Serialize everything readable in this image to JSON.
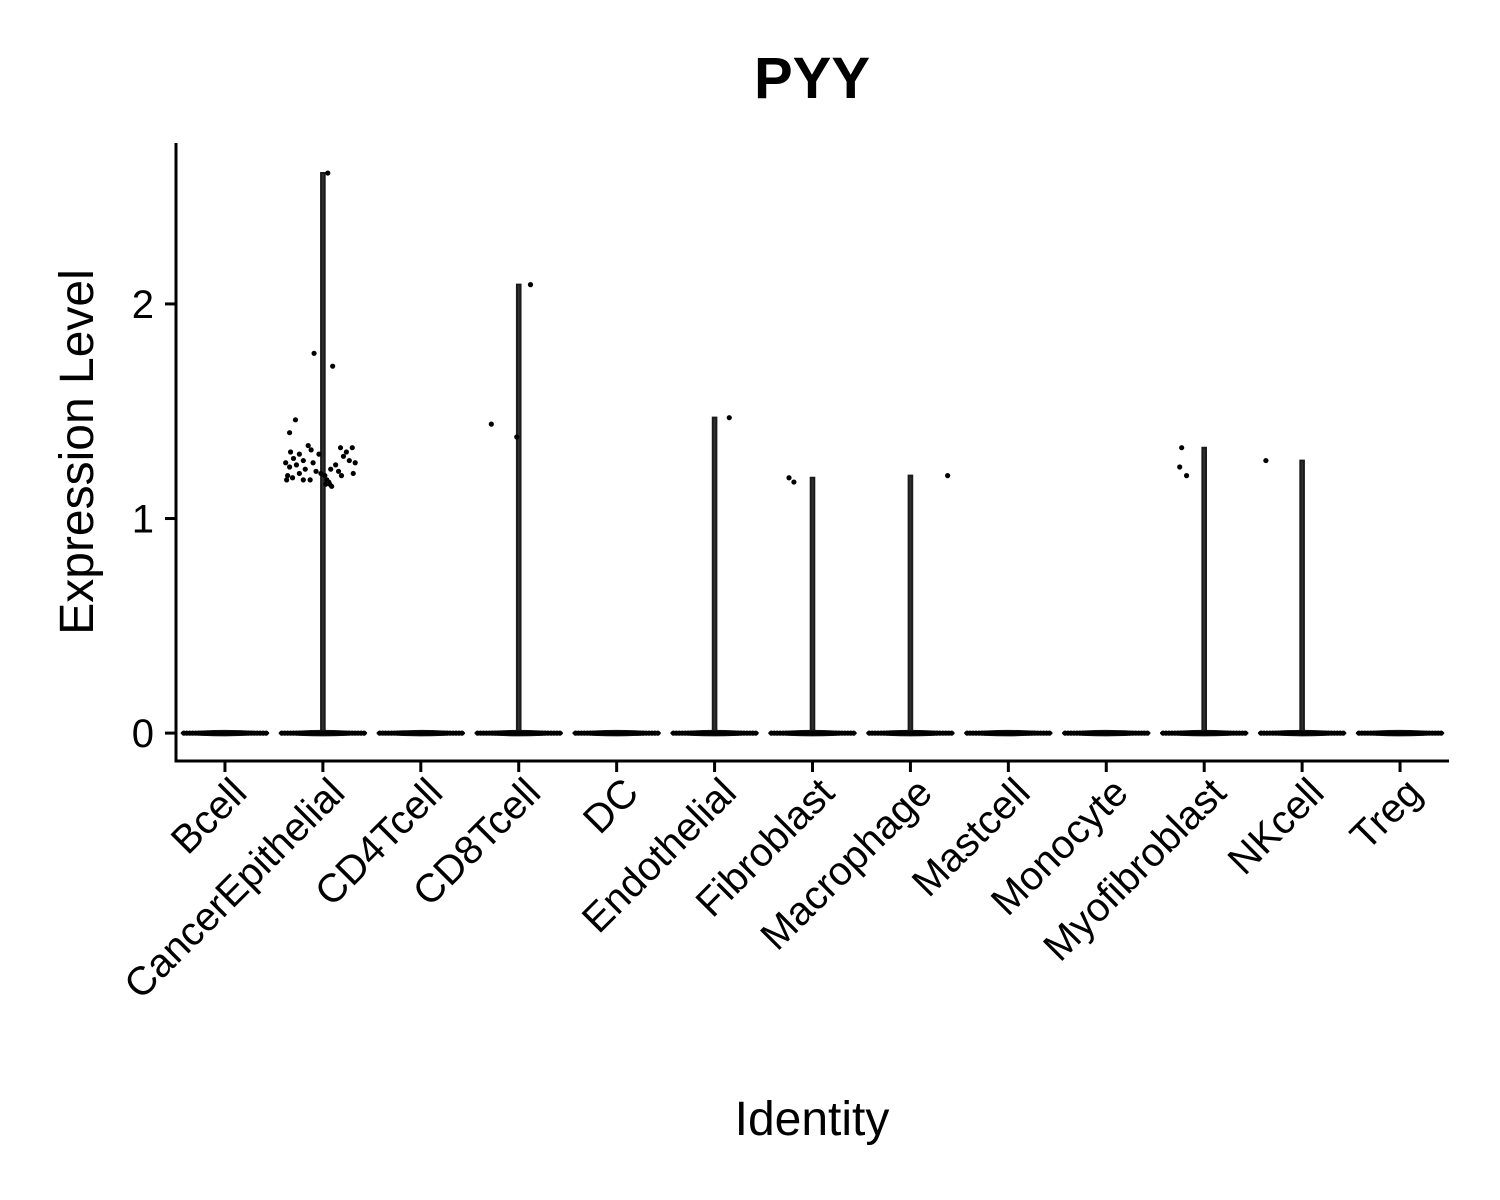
{
  "chart_data": {
    "type": "violin",
    "title": "PYY",
    "xlabel": "Identity",
    "ylabel": "Expression Level",
    "ylim": [
      -0.13,
      2.75
    ],
    "yticks": [
      0,
      1,
      2
    ],
    "legend": "none",
    "grid": false,
    "categories": [
      "Bcell",
      "CancerEpithelial",
      "CD4Tcell",
      "CD8Tcell",
      "DC",
      "Endothelial",
      "Fibroblast",
      "Macrophage",
      "Mastcell",
      "Monocyte",
      "Myofibroblast",
      "NKcell",
      "Treg"
    ],
    "violin_max": [
      0,
      2.61,
      0,
      2.09,
      0,
      1.47,
      1.19,
      1.2,
      0,
      0,
      1.33,
      1.27,
      0
    ],
    "points": [
      {
        "category": "CancerEpithelial",
        "jitter": 0.05,
        "y": 2.61
      },
      {
        "category": "CancerEpithelial",
        "jitter": -0.09,
        "y": 1.77
      },
      {
        "category": "CancerEpithelial",
        "jitter": 0.1,
        "y": 1.71
      },
      {
        "category": "CancerEpithelial",
        "jitter": -0.28,
        "y": 1.46
      },
      {
        "category": "CancerEpithelial",
        "jitter": -0.34,
        "y": 1.4
      },
      {
        "category": "CancerEpithelial",
        "jitter": -0.15,
        "y": 1.34
      },
      {
        "category": "CancerEpithelial",
        "jitter": -0.12,
        "y": 1.32
      },
      {
        "category": "CancerEpithelial",
        "jitter": 0.18,
        "y": 1.33
      },
      {
        "category": "CancerEpithelial",
        "jitter": 0.3,
        "y": 1.33
      },
      {
        "category": "CancerEpithelial",
        "jitter": 0.24,
        "y": 1.31
      },
      {
        "category": "CancerEpithelial",
        "jitter": -0.33,
        "y": 1.31
      },
      {
        "category": "CancerEpithelial",
        "jitter": -0.24,
        "y": 1.3
      },
      {
        "category": "CancerEpithelial",
        "jitter": -0.04,
        "y": 1.3
      },
      {
        "category": "CancerEpithelial",
        "jitter": 0.21,
        "y": 1.29
      },
      {
        "category": "CancerEpithelial",
        "jitter": -0.3,
        "y": 1.28
      },
      {
        "category": "CancerEpithelial",
        "jitter": -0.2,
        "y": 1.27
      },
      {
        "category": "CancerEpithelial",
        "jitter": 0.27,
        "y": 1.27
      },
      {
        "category": "CancerEpithelial",
        "jitter": -0.38,
        "y": 1.26
      },
      {
        "category": "CancerEpithelial",
        "jitter": -0.1,
        "y": 1.26
      },
      {
        "category": "CancerEpithelial",
        "jitter": 0.33,
        "y": 1.26
      },
      {
        "category": "CancerEpithelial",
        "jitter": -0.27,
        "y": 1.25
      },
      {
        "category": "CancerEpithelial",
        "jitter": 0.13,
        "y": 1.25
      },
      {
        "category": "CancerEpithelial",
        "jitter": -0.34,
        "y": 1.24
      },
      {
        "category": "CancerEpithelial",
        "jitter": -0.18,
        "y": 1.23
      },
      {
        "category": "CancerEpithelial",
        "jitter": 0.08,
        "y": 1.23
      },
      {
        "category": "CancerEpithelial",
        "jitter": -0.07,
        "y": 1.22
      },
      {
        "category": "CancerEpithelial",
        "jitter": 0.16,
        "y": 1.22
      },
      {
        "category": "CancerEpithelial",
        "jitter": -0.24,
        "y": 1.21
      },
      {
        "category": "CancerEpithelial",
        "jitter": -0.02,
        "y": 1.21
      },
      {
        "category": "CancerEpithelial",
        "jitter": 0.31,
        "y": 1.21
      },
      {
        "category": "CancerEpithelial",
        "jitter": -0.36,
        "y": 1.2
      },
      {
        "category": "CancerEpithelial",
        "jitter": 0.02,
        "y": 1.2
      },
      {
        "category": "CancerEpithelial",
        "jitter": 0.19,
        "y": 1.2
      },
      {
        "category": "CancerEpithelial",
        "jitter": -0.31,
        "y": 1.19
      },
      {
        "category": "CancerEpithelial",
        "jitter": -0.13,
        "y": 1.18
      },
      {
        "category": "CancerEpithelial",
        "jitter": 0.04,
        "y": 1.18
      },
      {
        "category": "CancerEpithelial",
        "jitter": -0.37,
        "y": 1.18
      },
      {
        "category": "CancerEpithelial",
        "jitter": -0.2,
        "y": 1.18
      },
      {
        "category": "CancerEpithelial",
        "jitter": 0.06,
        "y": 1.17
      },
      {
        "category": "CancerEpithelial",
        "jitter": 0.07,
        "y": 1.16
      },
      {
        "category": "CancerEpithelial",
        "jitter": 0.03,
        "y": 1.16
      },
      {
        "category": "CancerEpithelial",
        "jitter": 0.09,
        "y": 1.15
      },
      {
        "category": "CD8Tcell",
        "jitter": 0.12,
        "y": 2.09
      },
      {
        "category": "CD8Tcell",
        "jitter": -0.28,
        "y": 1.44
      },
      {
        "category": "CD8Tcell",
        "jitter": -0.02,
        "y": 1.38
      },
      {
        "category": "Endothelial",
        "jitter": 0.15,
        "y": 1.47
      },
      {
        "category": "Fibroblast",
        "jitter": -0.24,
        "y": 1.19
      },
      {
        "category": "Fibroblast",
        "jitter": -0.19,
        "y": 1.17
      },
      {
        "category": "Macrophage",
        "jitter": 0.38,
        "y": 1.2
      },
      {
        "category": "Myofibroblast",
        "jitter": -0.23,
        "y": 1.33
      },
      {
        "category": "Myofibroblast",
        "jitter": -0.25,
        "y": 1.24
      },
      {
        "category": "Myofibroblast",
        "jitter": -0.18,
        "y": 1.2
      },
      {
        "category": "NKcell",
        "jitter": -0.37,
        "y": 1.27
      }
    ]
  }
}
